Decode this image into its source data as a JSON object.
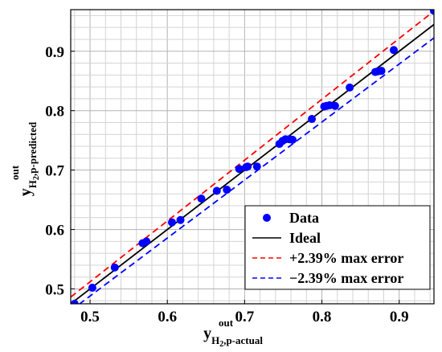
{
  "chart_data": {
    "type": "scatter",
    "xlabel": {
      "main": "y",
      "sup": "out",
      "sub": "H",
      "sub2": "2",
      "sub_rest": ",p-actual"
    },
    "ylabel": {
      "main": "y",
      "sup": "out",
      "sub": "H",
      "sub2": "2",
      "sub_rest": ",p-predicted"
    },
    "xlim": [
      0.475,
      0.945
    ],
    "ylim": [
      0.475,
      0.97
    ],
    "xticks": [
      0.5,
      0.6,
      0.7,
      0.8,
      0.9
    ],
    "yticks": [
      0.5,
      0.6,
      0.7,
      0.8,
      0.9
    ],
    "xtick_labels": [
      "0.5",
      "0.6",
      "0.7",
      "0.8",
      "0.9"
    ],
    "ytick_labels": [
      "0.5",
      "0.6",
      "0.7",
      "0.8",
      "0.9"
    ],
    "grid": true,
    "minor_grid": true,
    "legend_position": "bottom-right",
    "series": [
      {
        "name": "Data",
        "kind": "scatter",
        "color": "#0000ff",
        "points": [
          [
            0.48,
            0.475
          ],
          [
            0.503,
            0.502
          ],
          [
            0.532,
            0.536
          ],
          [
            0.568,
            0.577
          ],
          [
            0.573,
            0.58
          ],
          [
            0.606,
            0.612
          ],
          [
            0.617,
            0.616
          ],
          [
            0.644,
            0.652
          ],
          [
            0.664,
            0.665
          ],
          [
            0.677,
            0.667
          ],
          [
            0.693,
            0.702
          ],
          [
            0.702,
            0.705
          ],
          [
            0.704,
            0.706
          ],
          [
            0.716,
            0.706
          ],
          [
            0.745,
            0.744
          ],
          [
            0.749,
            0.749
          ],
          [
            0.753,
            0.752
          ],
          [
            0.758,
            0.752
          ],
          [
            0.762,
            0.751
          ],
          [
            0.787,
            0.786
          ],
          [
            0.803,
            0.807
          ],
          [
            0.806,
            0.808
          ],
          [
            0.81,
            0.809
          ],
          [
            0.817,
            0.808
          ],
          [
            0.836,
            0.839
          ],
          [
            0.869,
            0.865
          ],
          [
            0.872,
            0.866
          ],
          [
            0.877,
            0.867
          ],
          [
            0.893,
            0.902
          ],
          [
            0.945,
            0.968
          ]
        ]
      },
      {
        "name": "Ideal",
        "kind": "line",
        "color": "#000000",
        "dash": "solid",
        "factor": 1.0
      },
      {
        "name": "+2.39% max error",
        "kind": "line",
        "color": "#ff0000",
        "dash": "dashed",
        "factor": 1.0239
      },
      {
        "name": "−2.39% max error",
        "kind": "line",
        "color": "#0000ff",
        "dash": "dashed",
        "factor": 0.9761
      }
    ]
  }
}
